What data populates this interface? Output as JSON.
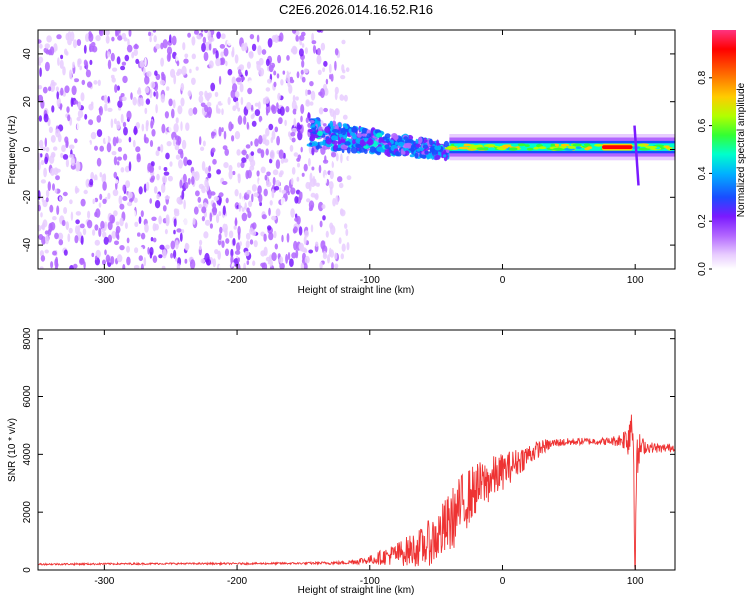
{
  "title": "C2E6.2026.014.16.52.R16",
  "colors": {
    "snr_line": "#ee3333",
    "colorscale": [
      "#ffffff",
      "#e8ccff",
      "#b266ff",
      "#7a1aff",
      "#4a1aff",
      "#1a4dff",
      "#00b2ff",
      "#00ffcc",
      "#33ff33",
      "#b2ff00",
      "#ffcc00",
      "#ff6600",
      "#ff0000",
      "#ff3380"
    ]
  },
  "chart_data": [
    {
      "type": "heatmap",
      "name": "spectrogram",
      "xlabel": "Height of straight line (km)",
      "ylabel": "Frequency (Hz)",
      "xlim": [
        -350,
        130
      ],
      "ylim": [
        -50,
        50
      ],
      "x_ticks": [
        -300,
        -200,
        -100,
        0,
        100
      ],
      "y_ticks": [
        -40,
        -20,
        0,
        20,
        40
      ],
      "colorbar": {
        "label": "Normalized spectral amplitude",
        "range": [
          0,
          1
        ],
        "ticks": [
          "0.0",
          "0.2",
          "0.4",
          "0.6",
          "0.8"
        ]
      },
      "features": [
        {
          "region": "broadband noise",
          "x_range": [
            -350,
            -130
          ],
          "freq_range": [
            -50,
            50
          ],
          "amplitude": 0.15
        },
        {
          "region": "signal onset band",
          "x_range": [
            -145,
            -40
          ],
          "freq_center": 3,
          "amplitude": 0.35
        },
        {
          "region": "stable carrier",
          "x_range": [
            -40,
            130
          ],
          "freq_center": 1,
          "amplitude": 0.55
        },
        {
          "region": "strong peak",
          "x_range": [
            75,
            98
          ],
          "freq_center": 1,
          "amplitude": 0.95
        },
        {
          "region": "spur near x=100",
          "x_range": [
            97,
            102
          ],
          "freq_range": [
            -15,
            10
          ],
          "amplitude": 0.25
        }
      ]
    },
    {
      "type": "line",
      "name": "snr",
      "xlabel": "Height of straight line (km)",
      "ylabel": "SNR (10 * v/v)",
      "xlim": [
        -350,
        130
      ],
      "ylim": [
        0,
        8300
      ],
      "x_ticks": [
        -300,
        -200,
        -100,
        0,
        100
      ],
      "y_ticks": [
        0,
        2000,
        4000,
        6000,
        8000
      ],
      "x": [
        -350,
        -300,
        -250,
        -200,
        -150,
        -120,
        -100,
        -80,
        -60,
        -50,
        -40,
        -30,
        -20,
        -10,
        0,
        10,
        20,
        30,
        40,
        60,
        80,
        90,
        95,
        98,
        100,
        102,
        105,
        110,
        120,
        130
      ],
      "values": [
        200,
        210,
        220,
        220,
        230,
        250,
        350,
        550,
        800,
        1100,
        1600,
        2300,
        2800,
        3100,
        3400,
        3700,
        4000,
        4250,
        4400,
        4450,
        4450,
        4500,
        4600,
        5500,
        1500,
        4000,
        4300,
        4250,
        4200,
        4250
      ],
      "noise": [
        30,
        30,
        30,
        30,
        35,
        60,
        150,
        400,
        700,
        900,
        1100,
        1100,
        900,
        800,
        650,
        500,
        400,
        250,
        150,
        120,
        130,
        250,
        700,
        1800,
        2000,
        900,
        300,
        200,
        150,
        150
      ]
    }
  ]
}
